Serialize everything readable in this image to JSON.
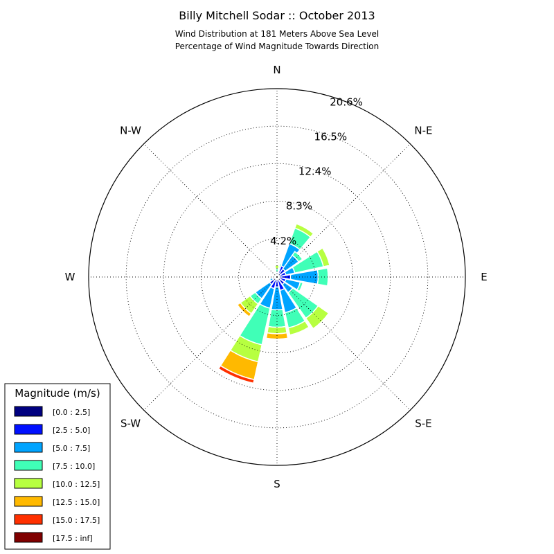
{
  "chart_data": {
    "type": "windrose",
    "title": "Billy Mitchell Sodar :: October 2013",
    "subtitle_lines": [
      "Wind Distribution at 181 Meters Above Sea Level",
      "Percentage of Wind Magnitude Towards Direction"
    ],
    "rmax": 20.6,
    "ring_labels": [
      "4.2%",
      "8.3%",
      "12.4%",
      "16.5%",
      "20.6%"
    ],
    "ring_values": [
      4.2,
      8.3,
      12.4,
      16.5,
      20.6
    ],
    "direction_labels": [
      {
        "angle": 0,
        "text": "N"
      },
      {
        "angle": 45,
        "text": "N-E"
      },
      {
        "angle": 90,
        "text": "E"
      },
      {
        "angle": 135,
        "text": "S-E"
      },
      {
        "angle": 180,
        "text": "S"
      },
      {
        "angle": 225,
        "text": "S-W"
      },
      {
        "angle": 270,
        "text": "W"
      },
      {
        "angle": 315,
        "text": "N-W"
      }
    ],
    "grid": true,
    "legend_title": "Magnitude (m/s)",
    "legend_position": "bottom-left",
    "bins": [
      {
        "label": "[0.0 : 2.5]",
        "color": "#000080"
      },
      {
        "label": "[2.5 : 5.0]",
        "color": "#0010ff"
      },
      {
        "label": "[5.0 : 7.5]",
        "color": "#00a4ff"
      },
      {
        "label": "[7.5 : 10.0]",
        "color": "#40ffb7"
      },
      {
        "label": "[10.0 : 12.5]",
        "color": "#b7ff40"
      },
      {
        "label": "[12.5 : 15.0]",
        "color": "#ffb900"
      },
      {
        "label": "[15.0 : 17.5]",
        "color": "#ff3000"
      },
      {
        "label": "[17.5 : inf]",
        "color": "#800000"
      }
    ],
    "sector_width_deg": 20,
    "sectors": [
      {
        "angle": 0,
        "cumulative": [
          0.1,
          0.3,
          0.5,
          0.9,
          1.3
        ]
      },
      {
        "angle": 22.5,
        "cumulative": [
          0.2,
          0.6,
          1.0,
          1.5
        ]
      },
      {
        "angle": 30,
        "cumulative": [
          0.2,
          1.3,
          3.9,
          5.7,
          6.2
        ]
      },
      {
        "angle": 45,
        "cumulative": [
          0.2,
          1.1,
          2.9,
          3.4
        ]
      },
      {
        "angle": 67.5,
        "cumulative": [
          0.2,
          1.0,
          2.0,
          5.2,
          5.9
        ]
      },
      {
        "angle": 90,
        "cumulative": [
          0.2,
          1.5,
          4.5,
          5.6
        ]
      },
      {
        "angle": 112.5,
        "cumulative": [
          0.2,
          1.0,
          2.6,
          2.9
        ]
      },
      {
        "angle": 135,
        "cumulative": [
          0.2,
          1.0,
          2.1,
          5.5,
          6.9
        ]
      },
      {
        "angle": 157.5,
        "cumulative": [
          0.2,
          1.5,
          4.0,
          5.7,
          6.5
        ]
      },
      {
        "angle": 180,
        "cumulative": [
          0.1,
          1.1,
          3.6,
          5.5,
          6.2,
          6.8
        ]
      },
      {
        "angle": 202.5,
        "cumulative": [
          0.2,
          1.3,
          3.5,
          7.6,
          9.5,
          11.5,
          11.9
        ]
      },
      {
        "angle": 225,
        "cumulative": [
          0.2,
          1.0,
          2.9,
          3.6,
          4.9,
          5.3
        ]
      },
      {
        "angle": 247.5,
        "cumulative": [
          0.1,
          0.5,
          0.8
        ]
      },
      {
        "angle": 270,
        "cumulative": [
          0.1,
          0.3,
          0.4
        ]
      },
      {
        "angle": 292.5,
        "cumulative": [
          0.1,
          0.2,
          0.3
        ]
      },
      {
        "angle": 315,
        "cumulative": [
          0.1,
          0.2
        ]
      },
      {
        "angle": 337.5,
        "cumulative": [
          0.1,
          0.2
        ]
      }
    ]
  }
}
